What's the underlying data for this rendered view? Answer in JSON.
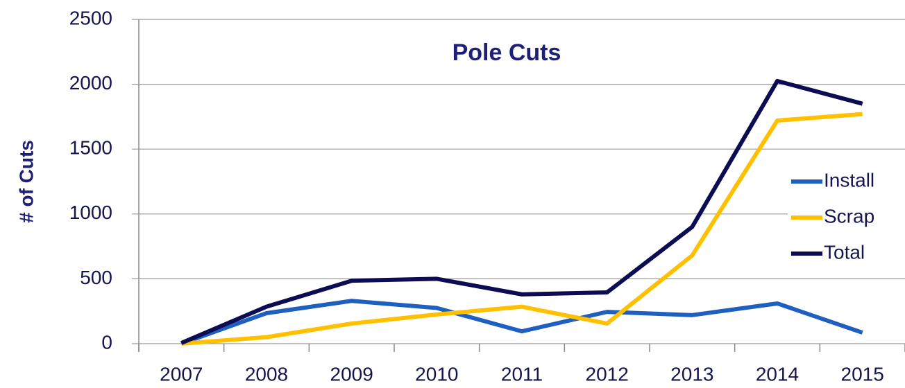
{
  "chart_data": {
    "type": "line",
    "title": "Pole Cuts",
    "y_label": "# of Cuts",
    "categories": [
      "2007",
      "2008",
      "2009",
      "2010",
      "2011",
      "2012",
      "2013",
      "2014",
      "2015"
    ],
    "series": [
      {
        "name": "Install",
        "color": "#1f5fbf",
        "values": [
          0,
          235,
          330,
          275,
          95,
          245,
          220,
          310,
          85
        ]
      },
      {
        "name": "Scrap",
        "color": "#ffc000",
        "values": [
          0,
          50,
          155,
          225,
          285,
          155,
          680,
          1720,
          1770
        ]
      },
      {
        "name": "Total",
        "color": "#0c0c52",
        "values": [
          5,
          285,
          485,
          500,
          380,
          395,
          900,
          2025,
          1850
        ]
      }
    ],
    "ylim": [
      0,
      2500
    ],
    "yticks": [
      0,
      500,
      1000,
      1500,
      2000,
      2500
    ],
    "grid": true,
    "legend": "right"
  }
}
